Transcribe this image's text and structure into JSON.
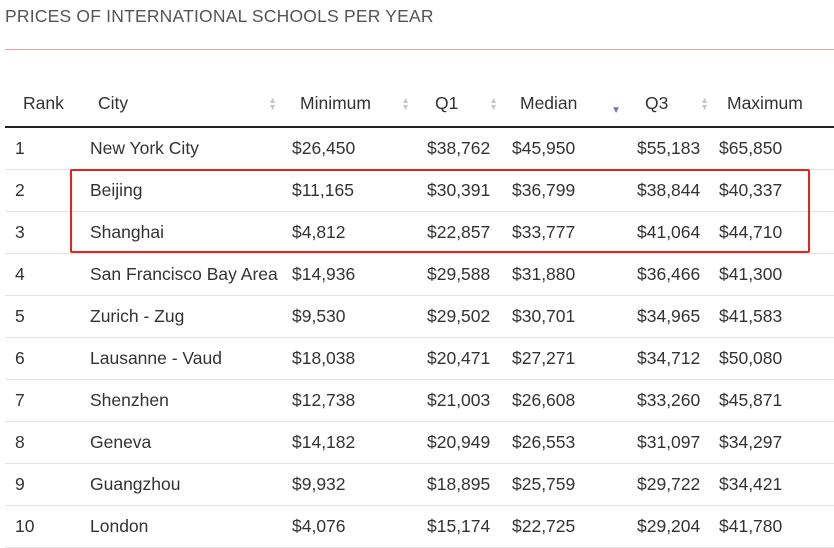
{
  "page": {
    "title": "PRICES OF INTERNATIONAL SCHOOLS PER YEAR"
  },
  "table": {
    "headers": {
      "rank": "Rank",
      "city": "City",
      "minimum": "Minimum",
      "q1": "Q1",
      "median": "Median",
      "q3": "Q3",
      "maximum": "Maximum"
    },
    "sorted_column": "median",
    "rows": [
      [
        "1",
        "New York City",
        "$26,450",
        "$38,762",
        "$45,950",
        "$55,183",
        "$65,850"
      ],
      [
        "2",
        "Beijing",
        "$11,165",
        "$30,391",
        "$36,799",
        "$38,844",
        "$40,337"
      ],
      [
        "3",
        "Shanghai",
        "$4,812",
        "$22,857",
        "$33,777",
        "$41,064",
        "$44,710"
      ],
      [
        "4",
        "San Francisco Bay Area",
        "$14,936",
        "$29,588",
        "$31,880",
        "$36,466",
        "$41,300"
      ],
      [
        "5",
        "Zurich - Zug",
        "$9,530",
        "$29,502",
        "$30,701",
        "$34,965",
        "$41,583"
      ],
      [
        "6",
        "Lausanne - Vaud",
        "$18,038",
        "$20,471",
        "$27,271",
        "$34,712",
        "$50,080"
      ],
      [
        "7",
        "Shenzhen",
        "$12,738",
        "$21,003",
        "$26,608",
        "$33,260",
        "$45,871"
      ],
      [
        "8",
        "Geneva",
        "$14,182",
        "$20,949",
        "$26,553",
        "$31,097",
        "$34,297"
      ],
      [
        "9",
        "Guangzhou",
        "$9,932",
        "$18,895",
        "$25,759",
        "$29,722",
        "$34,421"
      ],
      [
        "10",
        "London",
        "$4,076",
        "$15,174",
        "$22,725",
        "$29,204",
        "$41,780"
      ]
    ]
  },
  "colors": {
    "highlight": "#e8241a",
    "sort_active": "#7a73b8"
  }
}
